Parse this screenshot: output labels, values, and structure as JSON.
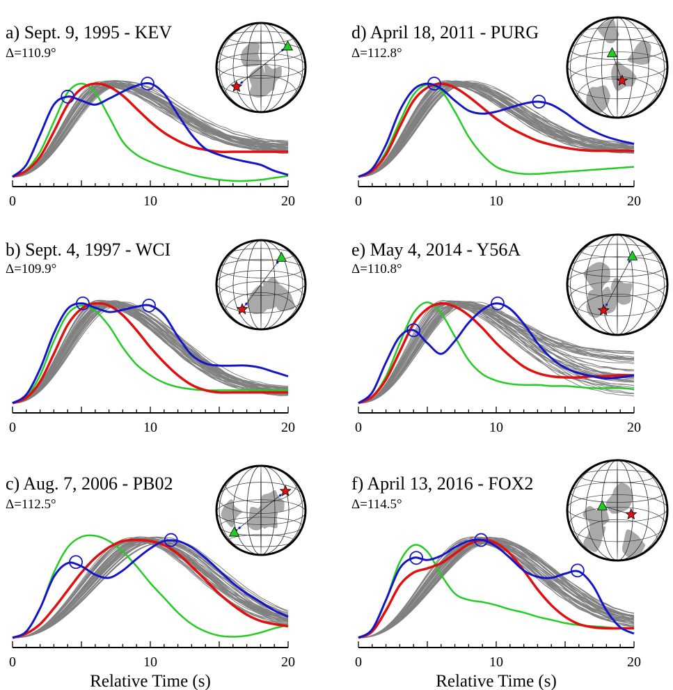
{
  "chart_data": [
    {
      "type": "line",
      "label": "a)",
      "title": "a) Sept. 9, 1995 - KEV",
      "delta": "Δ=110.9°",
      "x_ticks": [
        "0",
        "10",
        "20"
      ],
      "xlim": [
        0,
        20
      ],
      "xlabel": "",
      "peaks": [
        {
          "series": "blue",
          "x": 4.0,
          "y": 0.8
        },
        {
          "series": "blue",
          "x": 9.8,
          "y": 0.93
        }
      ],
      "series": [
        {
          "color": "#1515c8",
          "x": [
            0,
            1,
            2,
            3,
            4,
            5,
            6,
            7,
            8,
            9,
            10,
            11,
            12,
            13,
            14,
            15,
            16,
            17,
            18,
            19,
            20
          ],
          "y": [
            0,
            0.12,
            0.42,
            0.72,
            0.8,
            0.76,
            0.72,
            0.78,
            0.85,
            0.91,
            0.93,
            0.83,
            0.62,
            0.42,
            0.28,
            0.22,
            0.18,
            0.15,
            0.12,
            0.06,
            0.02
          ]
        },
        {
          "color": "#22cc22",
          "x": [
            0,
            1,
            2,
            3,
            4,
            5,
            6,
            7,
            8,
            9,
            10,
            11,
            12,
            13,
            14,
            15,
            16,
            17,
            18,
            19,
            20
          ],
          "y": [
            0,
            0.07,
            0.25,
            0.55,
            0.84,
            0.93,
            0.84,
            0.6,
            0.35,
            0.22,
            0.15,
            0.1,
            0.06,
            0.02,
            -0.01,
            -0.03,
            -0.04,
            -0.04,
            -0.03,
            -0.01,
            0.01
          ]
        },
        {
          "color": "#e01010",
          "x": [
            0,
            1,
            2,
            3,
            4,
            5,
            6,
            7,
            8,
            9,
            10,
            11,
            12,
            13,
            14,
            15,
            16,
            17,
            18,
            19,
            20
          ],
          "y": [
            0,
            0.06,
            0.2,
            0.45,
            0.72,
            0.88,
            0.93,
            0.9,
            0.81,
            0.68,
            0.55,
            0.44,
            0.36,
            0.3,
            0.27,
            0.25,
            0.25,
            0.25,
            0.25,
            0.25,
            0.25
          ]
        }
      ],
      "gray": {
        "count": 40,
        "center": 7.0,
        "spread": 0.9,
        "tail": 0.28,
        "tail_spread": 0.06
      },
      "globe": {
        "rot": 0,
        "grid": "polar-top"
      }
    },
    {
      "type": "line",
      "label": "b)",
      "title": "b) Sept. 4, 1997 - WCI",
      "delta": "Δ=109.9°",
      "x_ticks": [
        "0",
        "10",
        "20"
      ],
      "xlim": [
        0,
        20
      ],
      "xlabel": "",
      "peaks": [
        {
          "series": "blue",
          "x": 5.1,
          "y": 0.93
        },
        {
          "series": "blue",
          "x": 9.9,
          "y": 0.91
        }
      ],
      "series": [
        {
          "color": "#1515c8",
          "x": [
            0,
            1,
            2,
            3,
            4,
            5,
            6,
            7,
            8,
            9,
            10,
            11,
            12,
            13,
            14,
            15,
            16,
            17,
            18,
            19,
            20
          ],
          "y": [
            0,
            0.08,
            0.32,
            0.65,
            0.88,
            0.93,
            0.89,
            0.85,
            0.87,
            0.9,
            0.91,
            0.82,
            0.62,
            0.45,
            0.37,
            0.35,
            0.35,
            0.35,
            0.33,
            0.29,
            0.25
          ]
        },
        {
          "color": "#22cc22",
          "x": [
            0,
            1,
            2,
            3,
            4,
            5,
            6,
            7,
            8,
            9,
            10,
            11,
            12,
            13,
            14,
            15,
            16,
            17,
            18,
            19,
            20
          ],
          "y": [
            0,
            0.06,
            0.26,
            0.58,
            0.83,
            0.91,
            0.86,
            0.72,
            0.52,
            0.36,
            0.26,
            0.19,
            0.15,
            0.13,
            0.12,
            0.12,
            0.12,
            0.12,
            0.12,
            0.12,
            0.12
          ]
        },
        {
          "color": "#e01010",
          "x": [
            0,
            1,
            2,
            3,
            4,
            5,
            6,
            7,
            8,
            9,
            10,
            11,
            12,
            13,
            14,
            15,
            16,
            17,
            18,
            19,
            20
          ],
          "y": [
            0,
            0.05,
            0.2,
            0.46,
            0.73,
            0.88,
            0.93,
            0.91,
            0.82,
            0.68,
            0.52,
            0.38,
            0.26,
            0.17,
            0.12,
            0.1,
            0.1,
            0.1,
            0.1,
            0.1,
            0.1
          ]
        }
      ],
      "gray": {
        "count": 40,
        "center": 7.0,
        "spread": 0.8,
        "tail": 0.1,
        "tail_spread": 0.04
      },
      "globe": {
        "rot": 40,
        "grid": "polar-top"
      }
    },
    {
      "type": "line",
      "label": "c)",
      "title": "c) Aug. 7, 2006 - PB02",
      "delta": "Δ=112.5°",
      "x_ticks": [
        "0",
        "10",
        "20"
      ],
      "xlim": [
        0,
        20
      ],
      "xlabel": "Relative Time (s)",
      "peaks": [
        {
          "series": "blue",
          "x": 4.6,
          "y": 0.72
        },
        {
          "series": "blue",
          "x": 11.5,
          "y": 0.93
        }
      ],
      "series": [
        {
          "color": "#1515c8",
          "x": [
            0,
            1,
            2,
            3,
            4,
            5,
            6,
            7,
            8,
            9,
            10,
            11,
            12,
            13,
            14,
            15,
            16,
            17,
            18,
            19,
            20
          ],
          "y": [
            0,
            0.06,
            0.28,
            0.58,
            0.71,
            0.68,
            0.6,
            0.57,
            0.64,
            0.75,
            0.85,
            0.92,
            0.92,
            0.86,
            0.76,
            0.64,
            0.52,
            0.42,
            0.34,
            0.26,
            0.2
          ]
        },
        {
          "color": "#22cc22",
          "x": [
            0,
            1,
            2,
            3,
            4,
            5,
            6,
            7,
            8,
            9,
            10,
            11,
            12,
            13,
            14,
            15,
            16,
            17,
            18,
            19,
            20
          ],
          "y": [
            0,
            0.06,
            0.28,
            0.62,
            0.86,
            0.96,
            0.97,
            0.92,
            0.82,
            0.68,
            0.52,
            0.38,
            0.24,
            0.13,
            0.06,
            0.02,
            0.01,
            0.02,
            0.05,
            0.09,
            0.12
          ]
        },
        {
          "color": "#e01010",
          "x": [
            0,
            1,
            2,
            3,
            4,
            5,
            6,
            7,
            8,
            9,
            10,
            11,
            12,
            13,
            14,
            15,
            16,
            17,
            18,
            19,
            20
          ],
          "y": [
            0,
            0.04,
            0.13,
            0.28,
            0.45,
            0.62,
            0.76,
            0.86,
            0.92,
            0.93,
            0.92,
            0.88,
            0.8,
            0.68,
            0.55,
            0.42,
            0.31,
            0.22,
            0.16,
            0.13,
            0.11
          ]
        }
      ],
      "gray": {
        "count": 40,
        "center": 9.8,
        "spread": 1.2,
        "tail": 0.12,
        "tail_spread": 0.05
      },
      "globe": {
        "rot": 180,
        "grid": "polar-bottom"
      }
    },
    {
      "type": "line",
      "label": "d)",
      "title": "d) April 18, 2011 - PURG",
      "delta": "Δ=112.8°",
      "x_ticks": [
        "0",
        "10",
        "20"
      ],
      "xlim": [
        0,
        20
      ],
      "xlabel": "",
      "peaks": [
        {
          "series": "blue",
          "x": 5.5,
          "y": 0.93
        },
        {
          "series": "blue",
          "x": 13.1,
          "y": 0.75
        }
      ],
      "series": [
        {
          "color": "#1515c8",
          "x": [
            0,
            1,
            2,
            3,
            4,
            5,
            6,
            7,
            8,
            9,
            10,
            11,
            12,
            13,
            14,
            15,
            16,
            17,
            18,
            19,
            20
          ],
          "y": [
            0,
            0.08,
            0.32,
            0.66,
            0.87,
            0.93,
            0.88,
            0.76,
            0.66,
            0.63,
            0.65,
            0.69,
            0.73,
            0.75,
            0.72,
            0.64,
            0.54,
            0.46,
            0.4,
            0.36,
            0.33
          ]
        },
        {
          "color": "#22cc22",
          "x": [
            0,
            1,
            2,
            3,
            4,
            5,
            6,
            7,
            8,
            9,
            10,
            11,
            12,
            13,
            14,
            15,
            16,
            17,
            18,
            19,
            20
          ],
          "y": [
            0,
            0.06,
            0.25,
            0.55,
            0.82,
            0.92,
            0.86,
            0.65,
            0.4,
            0.22,
            0.1,
            0.05,
            0.03,
            0.03,
            0.04,
            0.05,
            0.06,
            0.07,
            0.08,
            0.09,
            0.1
          ]
        },
        {
          "color": "#e01010",
          "x": [
            0,
            1,
            2,
            3,
            4,
            5,
            6,
            7,
            8,
            9,
            10,
            11,
            12,
            13,
            14,
            15,
            16,
            17,
            18,
            19,
            20
          ],
          "y": [
            0,
            0.06,
            0.22,
            0.5,
            0.76,
            0.89,
            0.93,
            0.89,
            0.8,
            0.69,
            0.58,
            0.49,
            0.42,
            0.36,
            0.32,
            0.29,
            0.27,
            0.26,
            0.26,
            0.26,
            0.26
          ]
        }
      ],
      "gray": {
        "count": 40,
        "center": 7.0,
        "spread": 0.9,
        "tail": 0.27,
        "tail_spread": 0.05
      },
      "globe": {
        "rot": 100,
        "grid": "polar-top"
      }
    },
    {
      "type": "line",
      "label": "e)",
      "title": "e) May 4, 2014 - Y56A",
      "delta": "Δ=110.8°",
      "x_ticks": [
        "0",
        "10",
        "20"
      ],
      "xlim": [
        0,
        20
      ],
      "xlabel": "",
      "peaks": [
        {
          "series": "blue",
          "x": 4.0,
          "y": 0.68
        },
        {
          "series": "blue",
          "x": 10.1,
          "y": 0.93
        }
      ],
      "series": [
        {
          "color": "#1515c8",
          "x": [
            0,
            1,
            2,
            3,
            4,
            5,
            6,
            7,
            8,
            9,
            10,
            11,
            12,
            13,
            14,
            15,
            16,
            17,
            18,
            19,
            20
          ],
          "y": [
            0,
            0.1,
            0.38,
            0.62,
            0.68,
            0.56,
            0.46,
            0.58,
            0.75,
            0.87,
            0.93,
            0.88,
            0.74,
            0.56,
            0.42,
            0.33,
            0.28,
            0.25,
            0.23,
            0.24,
            0.26
          ]
        },
        {
          "color": "#22cc22",
          "x": [
            0,
            1,
            2,
            3,
            4,
            5,
            6,
            7,
            8,
            9,
            10,
            11,
            12,
            13,
            14,
            15,
            16,
            17,
            18,
            19,
            20
          ],
          "y": [
            0,
            0.06,
            0.25,
            0.56,
            0.84,
            0.94,
            0.84,
            0.62,
            0.4,
            0.27,
            0.21,
            0.18,
            0.17,
            0.17,
            0.16,
            0.16,
            0.15,
            0.14,
            0.14,
            0.14,
            0.13
          ]
        },
        {
          "color": "#e01010",
          "x": [
            0,
            1,
            2,
            3,
            4,
            5,
            6,
            7,
            8,
            9,
            10,
            11,
            12,
            13,
            14,
            15,
            16,
            17,
            18,
            19,
            20
          ],
          "y": [
            0,
            0.06,
            0.22,
            0.48,
            0.74,
            0.88,
            0.93,
            0.9,
            0.82,
            0.7,
            0.56,
            0.44,
            0.34,
            0.28,
            0.25,
            0.24,
            0.24,
            0.25,
            0.25,
            0.26,
            0.26
          ]
        }
      ],
      "gray": {
        "count": 40,
        "center": 7.0,
        "spread": 1.1,
        "tail": 0.26,
        "tail_spread": 0.22
      },
      "globe": {
        "rot": 60,
        "grid": "polar-top"
      }
    },
    {
      "type": "line",
      "label": "f)",
      "title": "f) April 13, 2016 - FOX2",
      "delta": "Δ=114.5°",
      "x_ticks": [
        "0",
        "10",
        "20"
      ],
      "xlim": [
        0,
        20
      ],
      "xlabel": "Relative Time (s)",
      "peaks": [
        {
          "series": "blue",
          "x": 4.2,
          "y": 0.76
        },
        {
          "series": "blue",
          "x": 8.9,
          "y": 0.93
        },
        {
          "series": "blue",
          "x": 15.9,
          "y": 0.64
        }
      ],
      "series": [
        {
          "color": "#1515c8",
          "x": [
            0,
            1,
            2,
            3,
            4,
            5,
            6,
            7,
            8,
            9,
            10,
            11,
            12,
            13,
            14,
            15,
            16,
            17,
            18,
            19,
            20
          ],
          "y": [
            0,
            0.08,
            0.36,
            0.66,
            0.76,
            0.74,
            0.78,
            0.86,
            0.92,
            0.93,
            0.87,
            0.76,
            0.64,
            0.58,
            0.57,
            0.61,
            0.63,
            0.5,
            0.26,
            0.1,
            0.04
          ]
        },
        {
          "color": "#22cc22",
          "x": [
            0,
            1,
            2,
            3,
            4,
            5,
            6,
            7,
            8,
            9,
            10,
            11,
            12,
            13,
            14,
            15,
            16,
            17,
            18,
            19,
            20
          ],
          "y": [
            0,
            0.08,
            0.36,
            0.72,
            0.88,
            0.82,
            0.6,
            0.42,
            0.36,
            0.34,
            0.31,
            0.27,
            0.24,
            0.2,
            0.17,
            0.14,
            0.12,
            0.11,
            0.1,
            0.09,
            0.09
          ]
        },
        {
          "color": "#e01010",
          "x": [
            0,
            1,
            2,
            3,
            4,
            5,
            6,
            7,
            8,
            9,
            10,
            11,
            12,
            13,
            14,
            15,
            16,
            17,
            18,
            19,
            20
          ],
          "y": [
            0,
            0.06,
            0.26,
            0.5,
            0.62,
            0.66,
            0.71,
            0.8,
            0.89,
            0.93,
            0.9,
            0.8,
            0.64,
            0.46,
            0.31,
            0.2,
            0.13,
            0.1,
            0.09,
            0.09,
            0.09
          ]
        }
      ],
      "gray": {
        "count": 40,
        "center": 9.0,
        "spread": 1.0,
        "tail": 0.12,
        "tail_spread": 0.06
      },
      "globe": {
        "rot": 120,
        "grid": "polar-top"
      }
    }
  ],
  "colors": {
    "blue": "#1515c8",
    "green": "#22cc22",
    "red": "#e01010",
    "gray": "#808080",
    "land": "#a9a9a9"
  }
}
